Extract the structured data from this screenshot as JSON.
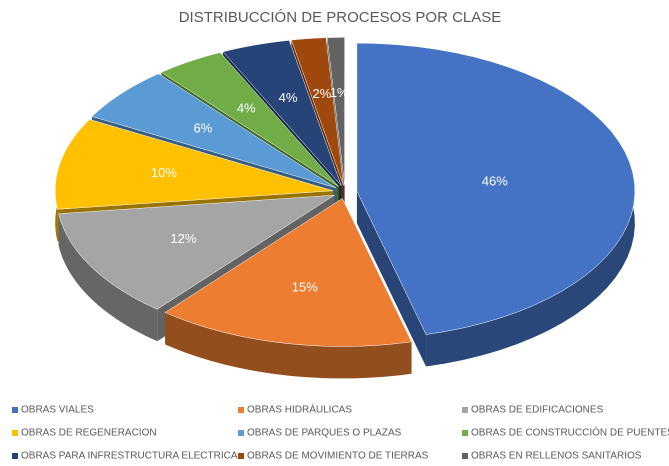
{
  "chart_data": {
    "type": "pie",
    "title": "DISTRIBUCCIÓN DE PROCESOS POR CLASE",
    "categories": [
      "OBRAS VIALES",
      "OBRAS HIDRÁULICAS",
      "OBRAS DE EDIFICACIONES",
      "OBRAS DE REGENERACION",
      "OBRAS DE PARQUES O PLAZAS",
      "OBRAS DE CONSTRUCCIÓN DE PUENTES",
      "OBRAS PARA INFRESTRUCTURA ELECTRICA",
      "OBRAS DE MOVIMIENTO DE TIERRAS",
      "OBRAS EN RELLENOS SANITARIOS"
    ],
    "values": [
      46,
      15,
      12,
      10,
      6,
      4,
      4,
      2,
      1
    ],
    "value_labels": [
      "46%",
      "15%",
      "12%",
      "10%",
      "6%",
      "4%",
      "4%",
      "2%",
      "1%"
    ],
    "colors": [
      "#4472c4",
      "#ed7d31",
      "#a5a5a5",
      "#ffc000",
      "#5b9bd5",
      "#70ad47",
      "#264478",
      "#9e480e",
      "#636363"
    ]
  }
}
